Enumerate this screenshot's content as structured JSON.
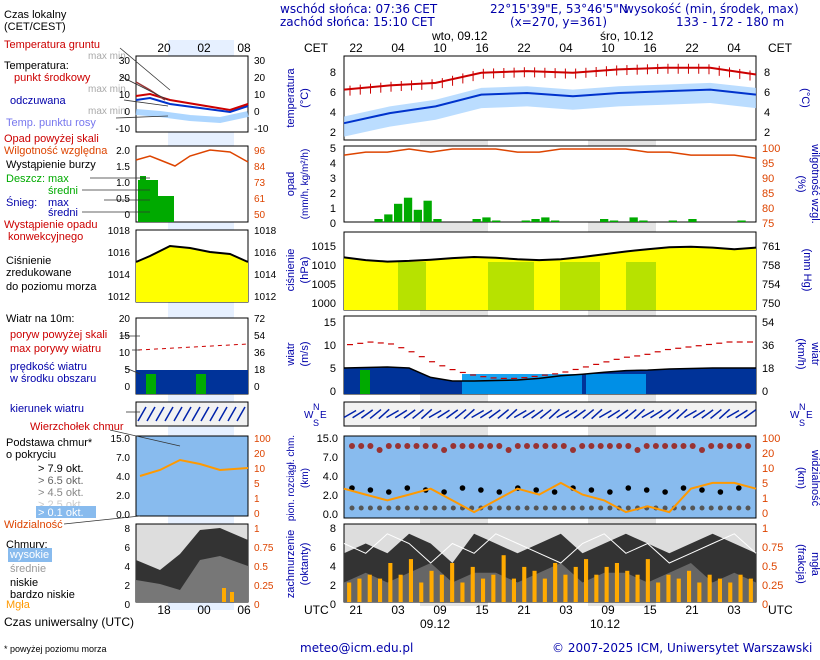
{
  "header": {
    "sunrise": "wschód słońca: 07:36 CET",
    "sunset": "zachód słońca: 15:10 CET",
    "coords": "22°15'39\"E, 53°46'5\"N",
    "grid": "(x=270, y=361)",
    "altitude_title": "wysokość (min, środek, max)",
    "altitude_values": "133 - 172 - 180 m"
  },
  "legend": {
    "local_time": "Czas lokalny",
    "local_time_zone": "(CET/CEST)",
    "ground_temp": "Temperatura gruntu",
    "max_min": "max min",
    "temperature": "Temperatura:",
    "center_point": "punkt środkowy",
    "max_min2": "max min",
    "perceived": "odczuwana",
    "max_min3": "max min",
    "dew_point": "Temp. punktu rosy",
    "precip_above": "Opad powyżej skali",
    "humidity": "Wilgotność względna",
    "storm": "Wystąpienie burzy",
    "rain": "Deszcz:",
    "rain_max": "max",
    "rain_mean": "średni",
    "snow": "Śnieg:",
    "snow_max": "max",
    "snow_mean": "średni",
    "conv_precip": "Wystąpienie opadu",
    "conv_precip2": "konwekcyjnego",
    "pressure1": "Ciśnienie",
    "pressure2": "zredukowane",
    "pressure3": "do poziomu morza",
    "wind10": "Wiatr na 10m:",
    "gusts_above": "poryw powyżej skali",
    "max_gust": "max porywy wiatru",
    "wind_speed": "prędkość wiatru",
    "wind_center": "w środku obszaru",
    "wind_dir": "kierunek wiatru",
    "cb_top": "Wierzchołek chmur",
    "cloud_base": "Podstawa chmur*",
    "cloud_base2": "o pokryciu",
    "okt79": "> 7.9 okt.",
    "okt65": "> 6.5 okt.",
    "okt45": "> 4.5 okt.",
    "okt25": "> 2.5 okt.",
    "okt01": "> 0.1 okt.",
    "visibility": "Widzialność",
    "clouds": "Chmury:",
    "high": "wysokie",
    "medium": "średnie",
    "low": "niskie",
    "very_low": "bardzo niskie",
    "fog": "Mgła",
    "utc_label": "Czas uniwersalny (UTC)",
    "footnote": "* powyżej poziomu morza",
    "small_top_ticks": [
      "20",
      "02",
      "08"
    ],
    "small_bottom_ticks": [
      "18",
      "00",
      "06"
    ]
  },
  "axes": {
    "cet": "CET",
    "utc": "UTC",
    "top_hours": [
      "22",
      "04",
      "10",
      "16",
      "22",
      "04",
      "10",
      "16",
      "22",
      "04"
    ],
    "bottom_hours": [
      "21",
      "03",
      "09",
      "15",
      "21",
      "03",
      "09",
      "15",
      "21",
      "03"
    ],
    "date1": "wto, 09.12",
    "date2": "śro, 10.12",
    "bdate1": "09.12",
    "bdate2": "10.12",
    "temp_label": "temperatura",
    "temp_unit": "(°C)",
    "temp_ticks": [
      "8",
      "6",
      "4",
      "2"
    ],
    "precip_label": "opad",
    "precip_unit": "(mm/h, kg/m²/h)",
    "precip_ticks": [
      "5",
      "4",
      "3",
      "2",
      "1",
      "0"
    ],
    "hum_label": "wilgotność wzgl.",
    "hum_unit": "(%)",
    "hum_ticks": [
      "100",
      "95",
      "90",
      "85",
      "80",
      "75"
    ],
    "pres_label": "ciśnienie",
    "pres_unit": "(hPa)",
    "pres_ticks": [
      "1015",
      "1010",
      "1005",
      "1000"
    ],
    "pres_label_r": "(mm Hg)",
    "pres_ticks_r": [
      "761",
      "758",
      "754",
      "750"
    ],
    "wind_label": "wiatr",
    "wind_unit": "(m/s)",
    "wind_ticks": [
      "15",
      "10",
      "5",
      "0"
    ],
    "wind_unit_r": "(km/h)",
    "wind_ticks_r": [
      "54",
      "36",
      "18",
      "0"
    ],
    "cloud_label": "pion. rozciągł. chm.",
    "cloud_unit": "(km)",
    "cloud_ticks": [
      "15.0",
      "7.0",
      "4.0",
      "2.0",
      "0.0"
    ],
    "vis_label": "widzialność",
    "vis_unit": "(km)",
    "vis_ticks": [
      "100",
      "20",
      "10",
      "5",
      "1",
      "0"
    ],
    "cover_label": "zachmurzenie",
    "cover_unit": "(oktanty)",
    "cover_ticks": [
      "8",
      "6",
      "4",
      "2",
      "0"
    ],
    "fog_label": "mgła",
    "fog_unit": "(frakcja)",
    "fog_ticks": [
      "1",
      "0.75",
      "0.5",
      "0.25",
      "0"
    ],
    "small_temp_ticks_l": [
      "30",
      "20",
      "10",
      "0",
      "-10"
    ],
    "small_temp_ticks_r": [
      "30",
      "20",
      "10",
      "0",
      "-10"
    ],
    "small_precip_ticks": [
      "2.0",
      "1.5",
      "1.0",
      "0.5",
      "0"
    ],
    "small_hum_ticks": [
      "96",
      "84",
      "73",
      "61",
      "50"
    ],
    "small_pres_ticks_l": [
      "1018",
      "1016",
      "1014",
      "1012"
    ],
    "small_pres_ticks_r": [
      "1018",
      "1016",
      "1014",
      "1012"
    ],
    "small_wind_ticks_l": [
      "20",
      "15",
      "10",
      "5",
      "0"
    ],
    "small_wind_ticks_r": [
      "72",
      "54",
      "36",
      "18",
      "0"
    ],
    "small_cloud_ticks": [
      "15.0",
      "7.0",
      "4.0",
      "2.0",
      "0.0"
    ],
    "small_vis_ticks": [
      "100",
      "20",
      "10",
      "5",
      "1",
      "0"
    ],
    "small_cover_ticks": [
      "8",
      "6",
      "4",
      "2",
      "0"
    ],
    "small_fog_ticks": [
      "1",
      "0.75",
      "0.5",
      "0.25",
      "0"
    ]
  },
  "footer": {
    "email": "meteo@icm.edu.pl",
    "copyright": "© 2007-2025 ICM, Uniwersytet Warszawski"
  },
  "colors": {
    "temp_red": "#cc0000",
    "perceived_blue": "#0033cc",
    "band_blue": "#99ccff",
    "humidity": "#dd4400",
    "rain_green": "#00aa00",
    "pressure_fill": "#ffff00",
    "pressure_green": "#aadd00",
    "wind_navy": "#003399",
    "wind_sky": "#0099ee",
    "cloud_bg": "#88bbee",
    "cloud_red": "#993333",
    "vis_orange": "#ff9900",
    "fog_orange": "#ffaa00",
    "day_shade": "#e0e0e0"
  },
  "chart_data": [
    {
      "type": "line",
      "title": "temperatura",
      "ylabel": "(°C)",
      "ylim": [
        0,
        10
      ],
      "x": [
        "22",
        "04",
        "10",
        "16",
        "22",
        "04",
        "10",
        "16",
        "22",
        "04"
      ],
      "series": [
        {
          "name": "punkt środkowy",
          "values": [
            6.0,
            6.5,
            6.8,
            8.0,
            8.2,
            8.0,
            8.4,
            8.6,
            8.6,
            7.8
          ]
        },
        {
          "name": "odczuwana",
          "values": [
            2.0,
            3.2,
            4.0,
            5.4,
            5.6,
            5.2,
            5.6,
            5.8,
            6.0,
            5.4
          ]
        }
      ]
    },
    {
      "type": "bar",
      "title": "opad",
      "ylabel": "(mm/h, kg/m²/h)",
      "ylim": [
        0,
        5
      ],
      "values": [
        0,
        0,
        0,
        0.2,
        0.5,
        1.2,
        1.6,
        0.8,
        1.4,
        0.2,
        0,
        0,
        0,
        0.2,
        0.3,
        0.1,
        0,
        0,
        0.1,
        0.2,
        0.3,
        0.1,
        0,
        0,
        0,
        0,
        0.2,
        0.1,
        0,
        0.3,
        0.1,
        0,
        0,
        0.1,
        0,
        0.2,
        0,
        0,
        0,
        0,
        0.1,
        0
      ]
    },
    {
      "type": "line",
      "title": "wilgotność wzgl.",
      "ylabel": "(%)",
      "ylim": [
        75,
        100
      ],
      "values": [
        97,
        98,
        98,
        99,
        98,
        99,
        99,
        99,
        98,
        98,
        99,
        99,
        99,
        99,
        98,
        98,
        97,
        97,
        97,
        96
      ]
    },
    {
      "type": "area",
      "title": "ciśnienie",
      "ylabel": "(hPa)",
      "ylim": [
        1000,
        1020
      ],
      "values": [
        1013.5,
        1012.8,
        1012.4,
        1012.6,
        1012.9,
        1013.3,
        1013.6,
        1013.4,
        1013.0,
        1012.8,
        1013.0,
        1013.6,
        1014.3,
        1015.0,
        1015.6,
        1016.1,
        1016.2,
        1016.0,
        1015.6,
        1016.0
      ]
    },
    {
      "type": "area",
      "title": "wiatr",
      "ylabel": "(m/s)",
      "ylim": [
        0,
        15
      ],
      "series": [
        {
          "name": "prędkość wiatru",
          "values": [
            5.0,
            5.1,
            5.2,
            5.0,
            3.2,
            2.5,
            2.5,
            2.6,
            2.7,
            3.0,
            3.5,
            3.8,
            4.2,
            4.5,
            4.6,
            4.8,
            4.9,
            5.0,
            5.0,
            5.0
          ]
        },
        {
          "name": "max porywy wiatru",
          "values": [
            9.5,
            10.0,
            9.6,
            8.0,
            6.0,
            4.5,
            3.5,
            3.0,
            3.0,
            3.5,
            4.0,
            5.0,
            6.0,
            7.0,
            7.5,
            8.5,
            9.0,
            9.5,
            10.0,
            10.0
          ]
        }
      ]
    },
    {
      "type": "line",
      "title": "widzialność",
      "ylabel": "(km)",
      "ylim": [
        0,
        100
      ],
      "values": [
        5,
        4,
        3,
        4,
        5,
        3,
        1,
        3,
        5,
        4,
        6,
        4,
        3,
        1,
        2,
        1,
        5,
        6,
        6,
        5
      ]
    },
    {
      "type": "bar",
      "title": "mgła",
      "ylabel": "(frakcja)",
      "ylim": [
        0,
        1
      ],
      "values": [
        0.25,
        0.3,
        0.35,
        0.3,
        0.5,
        0.35,
        0.55,
        0.25,
        0.4,
        0.35,
        0.5,
        0.25,
        0.45,
        0.3,
        0.35,
        0.6,
        0.3,
        0.45,
        0.4,
        0.3,
        0.5,
        0.35,
        0.45,
        0.55,
        0.35,
        0.45,
        0.5,
        0.4,
        0.35,
        0.55,
        0.25,
        0.35,
        0.3,
        0.4,
        0.25,
        0.35,
        0.3,
        0.25,
        0.35,
        0.3
      ]
    }
  ]
}
